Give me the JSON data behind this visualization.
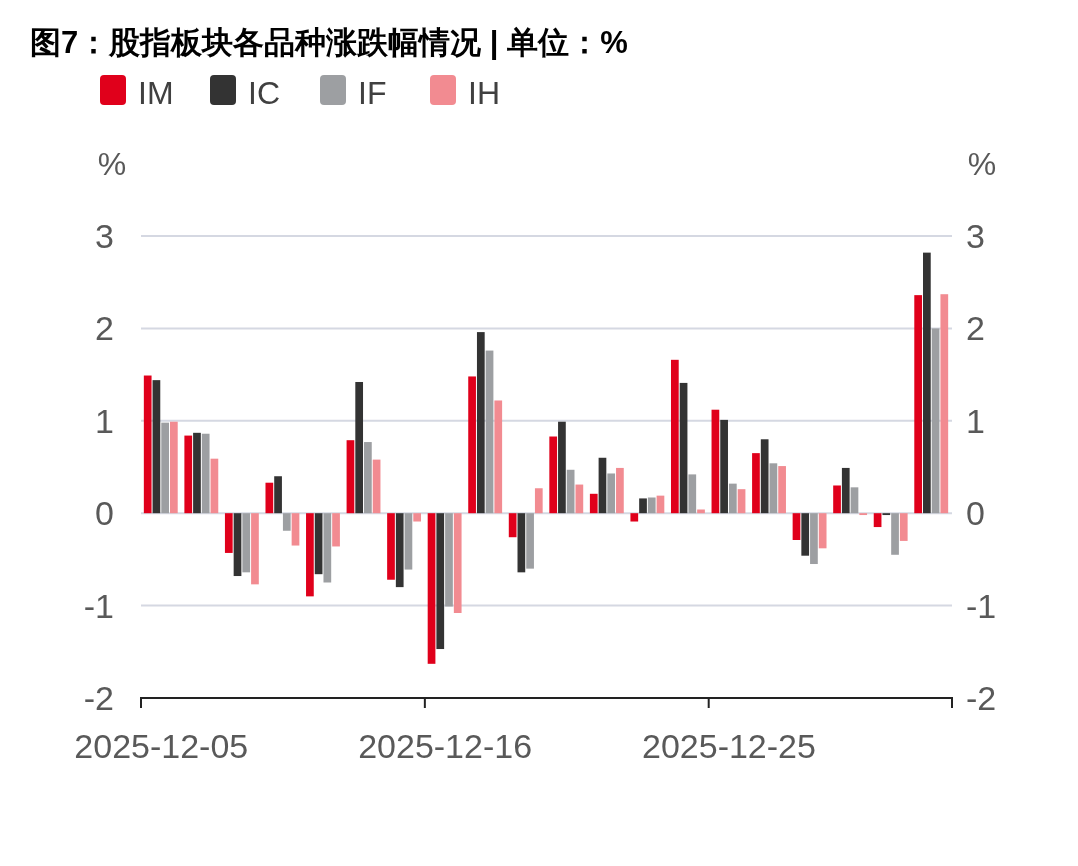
{
  "chart_data": {
    "type": "bar",
    "title": "图7：股指板块各品种涨跌幅情况 | 单位：%",
    "categories": [
      "2025-12-05",
      null,
      null,
      null,
      null,
      null,
      null,
      "2025-12-16",
      null,
      null,
      null,
      null,
      null,
      null,
      "2025-12-25",
      null,
      null,
      null,
      null,
      null
    ],
    "series": [
      {
        "name": "IM",
        "color": "#e0001b",
        "values": [
          1.49,
          0.84,
          -0.43,
          0.33,
          -0.9,
          0.79,
          -0.72,
          -1.63,
          1.48,
          -0.26,
          0.83,
          0.21,
          -0.09,
          1.66,
          1.12,
          0.65,
          -0.29,
          0.3,
          -0.15,
          2.36
        ]
      },
      {
        "name": "IC",
        "color": "#333333",
        "values": [
          1.44,
          0.87,
          -0.68,
          0.4,
          -0.66,
          1.42,
          -0.8,
          -1.47,
          1.96,
          -0.64,
          0.99,
          0.6,
          0.16,
          1.41,
          1.01,
          0.8,
          -0.46,
          0.49,
          -0.02,
          2.82
        ]
      },
      {
        "name": "IF",
        "color": "#9d9fa2",
        "values": [
          0.98,
          0.86,
          -0.64,
          -0.19,
          -0.75,
          0.77,
          -0.61,
          -1.01,
          1.76,
          -0.6,
          0.47,
          0.43,
          0.17,
          0.42,
          0.32,
          0.54,
          -0.55,
          0.28,
          -0.45,
          2.0
        ]
      },
      {
        "name": "IH",
        "color": "#f28b91",
        "values": [
          0.99,
          0.59,
          -0.77,
          -0.35,
          -0.36,
          0.58,
          -0.09,
          -1.08,
          1.22,
          0.27,
          0.31,
          0.49,
          0.19,
          0.04,
          0.26,
          0.51,
          -0.38,
          -0.02,
          -0.3,
          2.37
        ]
      }
    ],
    "ylabel": "%",
    "y2label": "%",
    "ylim": [
      -2,
      3
    ],
    "yticks": [
      -2,
      -1,
      0,
      1,
      2,
      3
    ],
    "y2lim": [
      -2,
      3
    ],
    "y2ticks": [
      -2,
      -1,
      0,
      1,
      2,
      3
    ],
    "grid": "y",
    "legend": "top left"
  }
}
